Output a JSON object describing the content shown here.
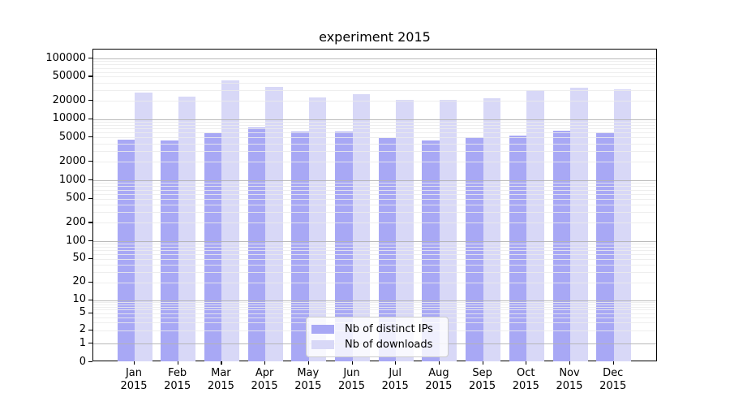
{
  "chart_data": {
    "type": "bar",
    "title": "experiment 2015",
    "categories": [
      "Jan 2015",
      "Feb 2015",
      "Mar 2015",
      "Apr 2015",
      "May 2015",
      "Jun 2015",
      "Jul 2015",
      "Aug 2015",
      "Sep 2015",
      "Oct 2015",
      "Nov 2015",
      "Dec 2015"
    ],
    "series": [
      {
        "name": "Nb of distinct IPs",
        "color": "#a8a8f5",
        "values": [
          4600,
          4400,
          5800,
          7200,
          6300,
          6200,
          4900,
          4400,
          5100,
          5400,
          6500,
          6100
        ]
      },
      {
        "name": "Nb of downloads",
        "color": "#d8d8f7",
        "values": [
          27000,
          23500,
          44000,
          34000,
          23000,
          25500,
          20700,
          20500,
          22000,
          29500,
          32500,
          31000
        ]
      }
    ],
    "xlabel": "",
    "ylabel": "",
    "yscale": "symlog",
    "ylim": [
      0,
      140000
    ],
    "yticks": [
      0,
      1,
      2,
      5,
      10,
      20,
      50,
      100,
      200,
      500,
      1000,
      2000,
      5000,
      10000,
      20000,
      50000,
      100000
    ],
    "grid": true,
    "grid_style": "horizontal log major+minor, drawn above bars",
    "legend_position": "lower center"
  }
}
